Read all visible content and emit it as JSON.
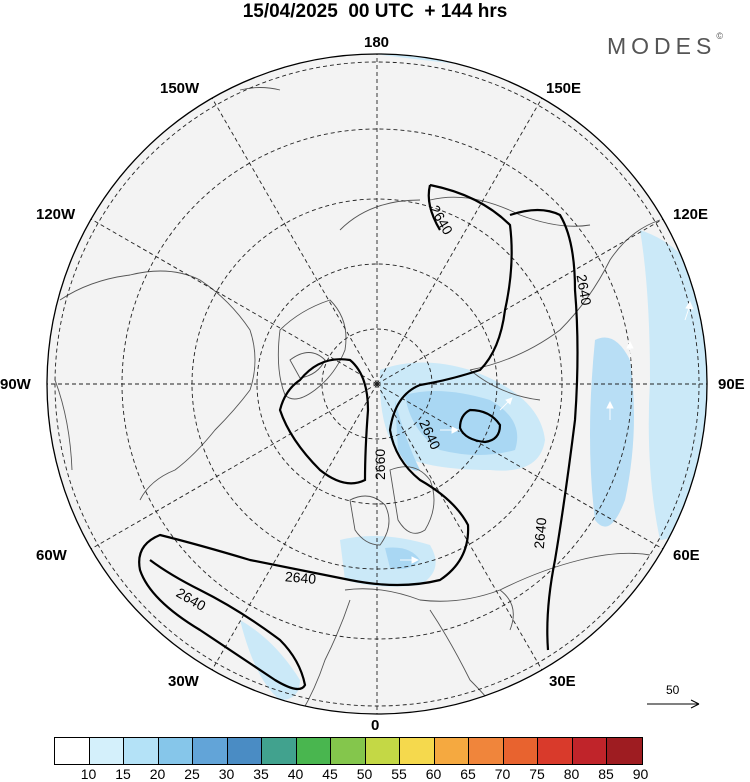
{
  "header": {
    "title": "15/04/2025  00 UTC  + 144 hrs",
    "brand": "MODES",
    "brand_mark": "©"
  },
  "map": {
    "projection": "north polar stereographic",
    "longitude_labels": {
      "top": "180",
      "bottom": "0",
      "left": "90W",
      "right": "90E",
      "upper_left_1": "150W",
      "upper_left_2": "120W",
      "lower_left_1": "60W",
      "lower_left_2": "30W",
      "upper_right_1": "150E",
      "upper_right_2": "120E",
      "lower_right_1": "60E",
      "lower_right_2": "30E"
    },
    "contour_labels": [
      "2640",
      "2640",
      "2640",
      "2660",
      "2640",
      "2640",
      "2640"
    ],
    "vector_reference": "50"
  },
  "colorbar": {
    "ticks": [
      "10",
      "15",
      "20",
      "25",
      "30",
      "35",
      "40",
      "45",
      "50",
      "55",
      "60",
      "65",
      "70",
      "75",
      "80",
      "85",
      "90"
    ],
    "colors": [
      "#ffffff",
      "#d4f0fb",
      "#b4e2f7",
      "#86c6ea",
      "#62a4d8",
      "#4a8cc4",
      "#41a28e",
      "#49b64f",
      "#84c64c",
      "#c4d845",
      "#f5d94d",
      "#f5a940",
      "#f0853b",
      "#e8632f",
      "#d93a2b",
      "#c0242a",
      "#9e1c21"
    ]
  }
}
